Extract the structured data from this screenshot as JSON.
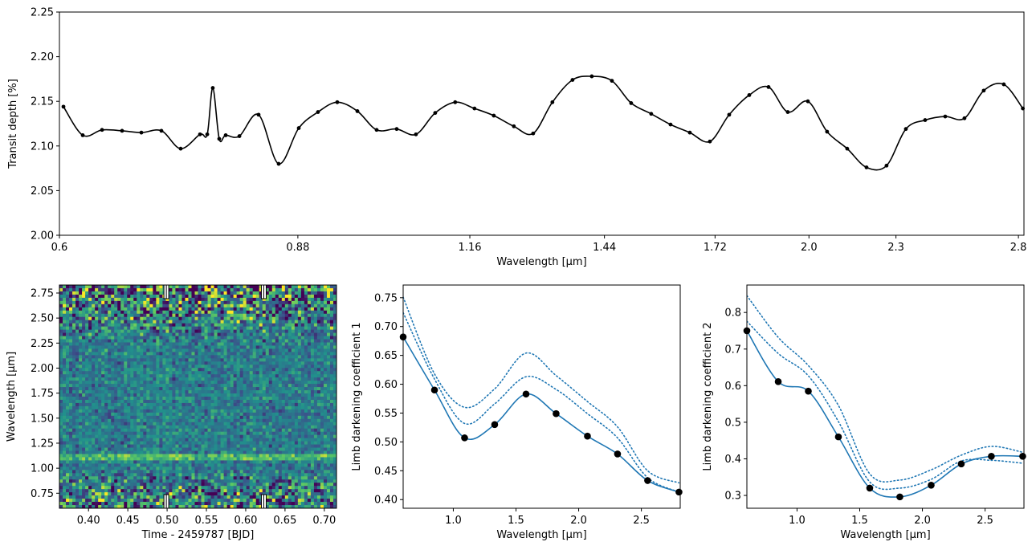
{
  "chart_data": [
    {
      "type": "line",
      "xlabel": "Wavelength [μm]",
      "ylabel": "Transit depth [%]",
      "xscale": "log",
      "xlim": [
        0.6,
        2.825
      ],
      "ylim": [
        2.0,
        2.25
      ],
      "xticks": [
        0.6,
        0.88,
        1.16,
        1.44,
        1.72,
        {
          "value": 2,
          "label": "2.0"
        },
        2.3,
        2.8
      ],
      "yticks": [
        {
          "value": 2,
          "label": "2.00"
        },
        2.05,
        {
          "value": 2.1,
          "label": "2.10"
        },
        2.15,
        {
          "value": 2.2,
          "label": "2.20"
        },
        2.25
      ],
      "x": [
        0.6039,
        0.6229,
        0.6425,
        0.6635,
        0.6844,
        0.7068,
        0.729,
        0.752,
        0.7608,
        0.7676,
        0.7756,
        0.7837,
        0.8011,
        0.8262,
        0.8533,
        0.8813,
        0.9089,
        0.9375,
        0.9683,
        0.9987,
        1.0314,
        1.0638,
        1.0972,
        1.133,
        1.1687,
        1.2055,
        1.245,
        1.2842,
        1.3245,
        1.368,
        1.411,
        1.4574,
        1.5031,
        1.5523,
        1.6013,
        1.6516,
        1.7058,
        1.7595,
        1.8171,
        1.8743,
        1.9331,
        1.9966,
        2.0591,
        2.1267,
        2.1937,
        2.2655,
        2.3369,
        2.4103,
        2.4894,
        2.5675,
        2.6483,
        2.735,
        2.82
      ],
      "series": [
        {
          "color": "#000000",
          "marker": true,
          "line": "solid",
          "values": [
            2.144,
            2.112,
            2.118,
            2.117,
            2.115,
            2.117,
            2.097,
            2.113,
            2.113,
            2.165,
            2.108,
            2.112,
            2.111,
            2.135,
            2.08,
            2.12,
            2.138,
            2.149,
            2.139,
            2.118,
            2.119,
            2.113,
            2.137,
            2.149,
            2.142,
            2.134,
            2.122,
            2.114,
            2.149,
            2.174,
            2.178,
            2.173,
            2.148,
            2.136,
            2.124,
            2.115,
            2.105,
            2.135,
            2.157,
            2.166,
            2.138,
            2.15,
            2.116,
            2.097,
            2.076,
            2.078,
            2.119,
            2.129,
            2.133,
            2.131,
            2.162,
            2.169,
            2.142
          ]
        }
      ]
    },
    {
      "type": "heatmap",
      "xlabel": "Time - 2459787 [BJD]",
      "ylabel": "Wavelength [μm]",
      "colormap": "viridis",
      "xlim": [
        0.363,
        0.7155
      ],
      "ylim": [
        0.6,
        2.83
      ],
      "xticks": [
        {
          "value": 0.4,
          "label": "0.40"
        },
        0.45,
        {
          "value": 0.5,
          "label": "0.50"
        },
        0.55,
        {
          "value": 0.6,
          "label": "0.60"
        },
        0.65,
        {
          "value": 0.7,
          "label": "0.70"
        }
      ],
      "yticks": [
        0.75,
        {
          "value": 1,
          "label": "1.00"
        },
        1.25,
        {
          "value": 1.5,
          "label": "1.50"
        },
        1.75,
        {
          "value": 2,
          "label": "2.00"
        },
        2.25,
        {
          "value": 2.5,
          "label": "2.50"
        },
        2.75
      ],
      "vlines": [
        0.499,
        0.623
      ]
    },
    {
      "type": "line",
      "xlabel": "Wavelength [μm]",
      "ylabel": "Limb darkening coefficient 1",
      "xlim": [
        0.6,
        2.81
      ],
      "ylim": [
        0.385,
        0.772
      ],
      "xticks": [
        {
          "value": 1,
          "label": "1.0"
        },
        1.5,
        {
          "value": 2,
          "label": "2.0"
        },
        2.5
      ],
      "yticks": [
        {
          "value": 0.4,
          "label": "0.40"
        },
        0.45,
        {
          "value": 0.5,
          "label": "0.50"
        },
        0.55,
        {
          "value": 0.6,
          "label": "0.60"
        },
        0.65,
        {
          "value": 0.7,
          "label": "0.70"
        },
        0.75
      ],
      "x": [
        0.6,
        0.85,
        1.09,
        1.33,
        1.58,
        1.82,
        2.07,
        2.31,
        2.55,
        2.8
      ],
      "series": [
        {
          "color": "#1f77b4",
          "marker_color": "#000000",
          "marker": true,
          "line": "solid",
          "values": [
            0.682,
            0.59,
            0.507,
            0.53,
            0.583,
            0.549,
            0.51,
            0.479,
            0.433,
            0.413
          ]
        },
        {
          "color": "#1f77b4",
          "line": "dotted",
          "values": [
            0.751,
            0.618,
            0.56,
            0.592,
            0.654,
            0.615,
            0.57,
            0.526,
            0.45,
            0.429
          ]
        },
        {
          "color": "#1f77b4",
          "line": "dotted",
          "values": [
            0.724,
            0.609,
            0.532,
            0.566,
            0.613,
            0.591,
            0.549,
            0.507,
            0.438,
            0.413
          ]
        }
      ]
    },
    {
      "type": "line",
      "xlabel": "Wavelength [μm]",
      "ylabel": "Limb darkening coefficient 2",
      "xlim": [
        0.6,
        2.81
      ],
      "ylim": [
        0.265,
        0.875
      ],
      "xticks": [
        {
          "value": 1,
          "label": "1.0"
        },
        1.5,
        {
          "value": 2,
          "label": "2.0"
        },
        2.5
      ],
      "yticks": [
        0.3,
        0.4,
        0.5,
        0.6,
        0.7,
        0.8
      ],
      "x": [
        0.6,
        0.85,
        1.09,
        1.33,
        1.58,
        1.82,
        2.07,
        2.31,
        2.55,
        2.8
      ],
      "series": [
        {
          "color": "#1f77b4",
          "marker_color": "#000000",
          "marker": true,
          "line": "solid",
          "values": [
            0.75,
            0.611,
            0.585,
            0.46,
            0.32,
            0.296,
            0.328,
            0.386,
            0.407,
            0.407
          ]
        },
        {
          "color": "#1f77b4",
          "line": "dotted",
          "values": [
            0.846,
            0.732,
            0.655,
            0.546,
            0.359,
            0.342,
            0.37,
            0.41,
            0.434,
            0.418
          ]
        },
        {
          "color": "#1f77b4",
          "line": "dotted",
          "values": [
            0.776,
            0.688,
            0.627,
            0.502,
            0.337,
            0.32,
            0.344,
            0.394,
            0.396,
            0.388
          ]
        }
      ]
    }
  ]
}
